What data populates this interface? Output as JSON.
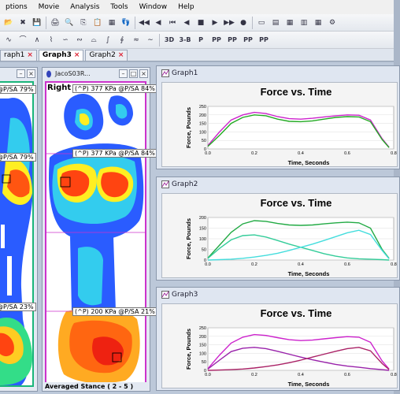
{
  "menu": [
    "ptions",
    "Movie",
    "Analysis",
    "Tools",
    "Window",
    "Help"
  ],
  "toolbar1_icons": [
    "open-folder-icon",
    "close-file-icon",
    "save-icon",
    "print-icon",
    "print-preview-icon",
    "copy-icon",
    "paste-icon",
    "color-scale-icon",
    "insole-icon",
    "step-back-icon",
    "step-forward-icon",
    "rewind-icon",
    "play-back-icon",
    "stop-icon",
    "play-forward-icon",
    "fast-forward-icon",
    "record-icon",
    "window-icon",
    "layout-icon",
    "grid-icon",
    "table-icon",
    "calendar-icon",
    "settings-icon"
  ],
  "toolbar2_icons": [
    "curve1-icon",
    "curve2-icon",
    "curve3-icon",
    "curve4-icon",
    "curve5-icon",
    "curve6-icon",
    "curve7-icon",
    "curve8-icon",
    "curve9-icon",
    "curve10-icon",
    "curve11-icon"
  ],
  "toolbar2_text_buttons": [
    "3D",
    "3-B",
    "P",
    "PP",
    "PP",
    "PP",
    "PP"
  ],
  "tabs": [
    {
      "label": "raph1",
      "active": false
    },
    {
      "label": "Graph3",
      "active": true
    },
    {
      "label": "Graph2",
      "active": false
    }
  ],
  "left_pane": {
    "labels": [
      "@P/SA 79%",
      "@P/SA 79%",
      "@P/SA 23%"
    ]
  },
  "mid_pane": {
    "title": "JacoS03R...",
    "foot_side": "Right",
    "labels": [
      "(^P) 377 KPa @P/SA 84%",
      "(^P) 377 KPa @P/SA 84%",
      "(^P) 200 KPa @P/SA 21%"
    ],
    "footer": "Averaged Stance ( 2 - 5 )"
  },
  "graphs": [
    {
      "window_title": "Graph1"
    },
    {
      "window_title": "Graph2"
    },
    {
      "window_title": "Graph3"
    }
  ],
  "chart_data": [
    {
      "type": "line",
      "title": "Force vs. Time",
      "xlabel": "Time, Seconds",
      "ylabel": "Force, Pounds",
      "xlim": [
        0,
        0.8
      ],
      "ylim": [
        0,
        250
      ],
      "xticks": [
        "0.0",
        "0.2",
        "0.4",
        "0.6",
        "0.8"
      ],
      "yticks": [
        "0",
        "50",
        "100",
        "150",
        "200",
        "250"
      ],
      "series": [
        {
          "color": "#cc22cc",
          "x": [
            0,
            0.05,
            0.1,
            0.15,
            0.2,
            0.25,
            0.3,
            0.35,
            0.4,
            0.45,
            0.5,
            0.55,
            0.6,
            0.65,
            0.7,
            0.75,
            0.78
          ],
          "y": [
            20,
            100,
            170,
            200,
            215,
            208,
            190,
            178,
            175,
            180,
            188,
            195,
            200,
            198,
            170,
            60,
            10
          ]
        },
        {
          "color": "#22aa22",
          "x": [
            0,
            0.05,
            0.1,
            0.15,
            0.2,
            0.25,
            0.3,
            0.35,
            0.4,
            0.45,
            0.5,
            0.55,
            0.6,
            0.65,
            0.7,
            0.75,
            0.78
          ],
          "y": [
            15,
            80,
            150,
            185,
            200,
            195,
            175,
            162,
            160,
            165,
            175,
            185,
            190,
            188,
            160,
            55,
            8
          ]
        }
      ]
    },
    {
      "type": "line",
      "title": "Force vs. Time",
      "xlabel": "Time, Seconds",
      "ylabel": "Force, Pounds",
      "xlim": [
        0,
        0.8
      ],
      "ylim": [
        0,
        200
      ],
      "xticks": [
        "0.0",
        "0.2",
        "0.4",
        "0.6",
        "0.8"
      ],
      "yticks": [
        "0",
        "50",
        "100",
        "150",
        "200"
      ],
      "series": [
        {
          "color": "#22aa44",
          "x": [
            0,
            0.05,
            0.1,
            0.15,
            0.2,
            0.25,
            0.3,
            0.35,
            0.4,
            0.45,
            0.5,
            0.55,
            0.6,
            0.65,
            0.7,
            0.75,
            0.78
          ],
          "y": [
            10,
            70,
            130,
            170,
            185,
            182,
            172,
            165,
            163,
            165,
            170,
            175,
            178,
            175,
            150,
            50,
            8
          ]
        },
        {
          "color": "#33cc99",
          "x": [
            0,
            0.05,
            0.1,
            0.15,
            0.2,
            0.25,
            0.3,
            0.35,
            0.4,
            0.45,
            0.5,
            0.55,
            0.6,
            0.65,
            0.7,
            0.75,
            0.78
          ],
          "y": [
            8,
            55,
            95,
            115,
            118,
            108,
            92,
            75,
            60,
            45,
            30,
            18,
            10,
            6,
            4,
            2,
            0
          ]
        },
        {
          "color": "#44dddd",
          "x": [
            0,
            0.05,
            0.1,
            0.15,
            0.2,
            0.25,
            0.3,
            0.35,
            0.4,
            0.45,
            0.5,
            0.55,
            0.6,
            0.65,
            0.7,
            0.75,
            0.78
          ],
          "y": [
            0,
            2,
            4,
            8,
            14,
            22,
            32,
            45,
            60,
            75,
            92,
            110,
            128,
            140,
            120,
            45,
            6
          ]
        }
      ]
    },
    {
      "type": "line",
      "title": "Force vs. Time",
      "xlabel": "Time, Seconds",
      "ylabel": "Force, Pounds",
      "xlim": [
        0,
        0.8
      ],
      "ylim": [
        0,
        250
      ],
      "xticks": [
        "0.0",
        "0.2",
        "0.4",
        "0.6",
        "0.8"
      ],
      "yticks": [
        "0",
        "50",
        "100",
        "150",
        "200",
        "250"
      ],
      "series": [
        {
          "color": "#cc22cc",
          "x": [
            0,
            0.05,
            0.1,
            0.15,
            0.2,
            0.25,
            0.3,
            0.35,
            0.4,
            0.45,
            0.5,
            0.55,
            0.6,
            0.65,
            0.7,
            0.75,
            0.78
          ],
          "y": [
            10,
            90,
            160,
            195,
            210,
            205,
            192,
            180,
            175,
            178,
            185,
            192,
            198,
            195,
            165,
            55,
            8
          ]
        },
        {
          "color": "#9922aa",
          "x": [
            0,
            0.05,
            0.1,
            0.15,
            0.2,
            0.25,
            0.3,
            0.35,
            0.4,
            0.45,
            0.5,
            0.55,
            0.6,
            0.65,
            0.7,
            0.75,
            0.78
          ],
          "y": [
            8,
            60,
            110,
            130,
            135,
            128,
            112,
            95,
            78,
            62,
            48,
            35,
            25,
            18,
            10,
            4,
            0
          ]
        },
        {
          "color": "#aa2266",
          "x": [
            0,
            0.05,
            0.1,
            0.15,
            0.2,
            0.25,
            0.3,
            0.35,
            0.4,
            0.45,
            0.5,
            0.55,
            0.6,
            0.65,
            0.7,
            0.75,
            0.78
          ],
          "y": [
            0,
            2,
            4,
            8,
            14,
            22,
            32,
            45,
            60,
            78,
            95,
            112,
            128,
            135,
            115,
            40,
            5
          ]
        }
      ]
    }
  ]
}
